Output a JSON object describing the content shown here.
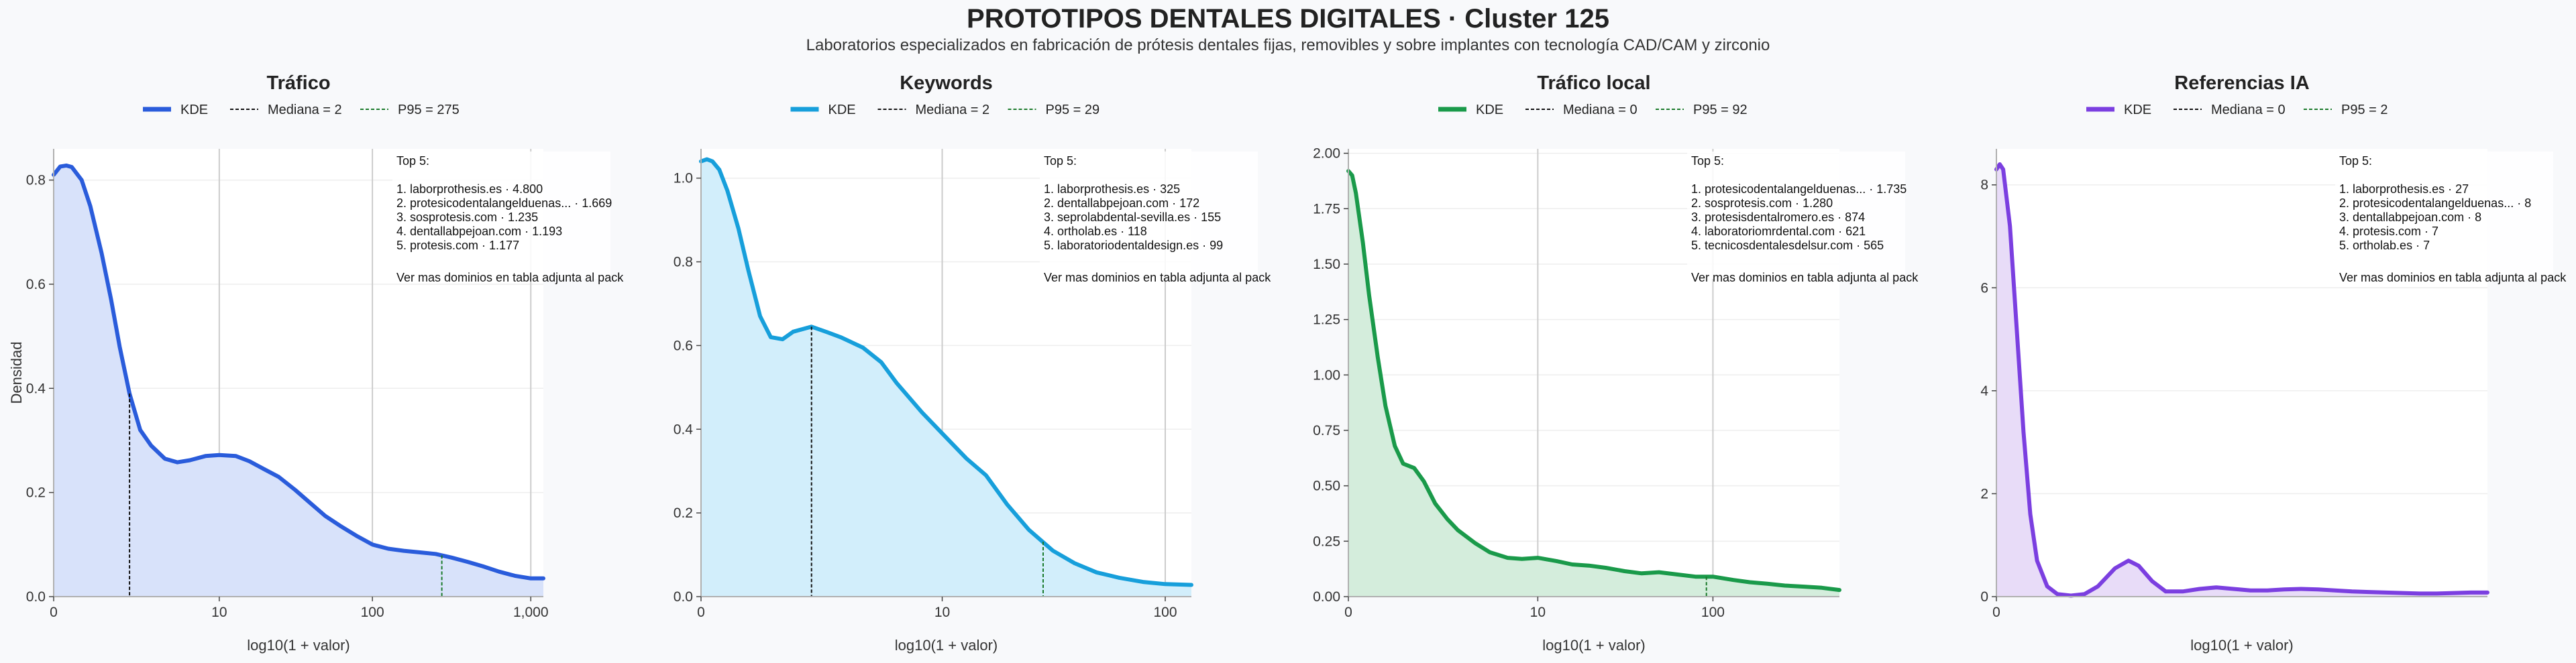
{
  "header": {
    "title": "PROTOTIPOS DENTALES DIGITALES · Cluster 125",
    "subtitle": "Laboratorios especializados en fabricación de prótesis dentales fijas, removibles y sobre implantes con tecnología CAD/CAM y zirconio"
  },
  "chart_data": [
    {
      "type": "area",
      "title": "Tráfico",
      "color": "#2a5cdb",
      "fill": "#d8e2fa",
      "xlabel": "log10(1 + valor)",
      "ylabel": "Densidad",
      "xscale": "log10(1+x)",
      "xlim": [
        0,
        1200
      ],
      "ylim": [
        0,
        0.86
      ],
      "xticks": [
        0,
        10,
        100,
        1000
      ],
      "xtick_labels": [
        "0",
        "10",
        "100",
        "1,000"
      ],
      "yticks": [
        0,
        0.2,
        0.4,
        0.6,
        0.8
      ],
      "ytick_labels": [
        "0.0",
        "0.2",
        "0.4",
        "0.6",
        "0.8"
      ],
      "legend": [
        "KDE",
        "Mediana = 2",
        "P95 = 275"
      ],
      "median": 2,
      "p95": 275,
      "series": [
        {
          "name": "KDE",
          "x": [
            0,
            0.1,
            0.2,
            0.3,
            0.5,
            0.7,
            1,
            1.3,
            1.6,
            2,
            2.5,
            3.1,
            4,
            5,
            6.2,
            8,
            10,
            13,
            16,
            20,
            25,
            32,
            40,
            50,
            63,
            79,
            100,
            126,
            158,
            200,
            251,
            316,
            398,
            501,
            631,
            794,
            1000,
            1200
          ],
          "y": [
            0.81,
            0.826,
            0.828,
            0.825,
            0.8,
            0.75,
            0.66,
            0.57,
            0.48,
            0.39,
            0.32,
            0.29,
            0.265,
            0.258,
            0.262,
            0.27,
            0.272,
            0.27,
            0.26,
            0.245,
            0.23,
            0.205,
            0.18,
            0.155,
            0.135,
            0.117,
            0.1,
            0.092,
            0.088,
            0.085,
            0.082,
            0.075,
            0.067,
            0.058,
            0.048,
            0.04,
            0.035,
            0.035
          ]
        }
      ],
      "annotation": {
        "heading": "Top 5:",
        "items": [
          "1. laborprothesis.es · 4.800",
          "2. protesicodentalangelduenas... · 1.669",
          "3. sosprotesis.com · 1.235",
          "4. dentallabpejoan.com · 1.193",
          "5. protesis.com · 1.177"
        ],
        "footer": "Ver mas dominios en tabla adjunta al pack"
      }
    },
    {
      "type": "area",
      "title": "Keywords",
      "color": "#179fdb",
      "fill": "#d2eefb",
      "xlabel": "log10(1 + valor)",
      "ylabel": "",
      "xscale": "log10(1+x)",
      "xlim": [
        0,
        130
      ],
      "ylim": [
        0,
        1.07
      ],
      "xticks": [
        0,
        10,
        100
      ],
      "xtick_labels": [
        "0",
        "10",
        "100"
      ],
      "yticks": [
        0,
        0.2,
        0.4,
        0.6,
        0.8,
        1.0
      ],
      "ytick_labels": [
        "0.0",
        "0.2",
        "0.4",
        "0.6",
        "0.8",
        "1.0"
      ],
      "legend": [
        "KDE",
        "Mediana = 2",
        "P95 = 29"
      ],
      "median": 2,
      "p95": 29,
      "series": [
        {
          "name": "KDE",
          "x": [
            0,
            0.06,
            0.12,
            0.2,
            0.3,
            0.45,
            0.6,
            0.8,
            1,
            1.25,
            1.5,
            2,
            2.5,
            3,
            4,
            5,
            6,
            8,
            10,
            13,
            16,
            20,
            25,
            32,
            40,
            50,
            63,
            80,
            100,
            130
          ],
          "y": [
            1.04,
            1.045,
            1.04,
            1.02,
            0.97,
            0.88,
            0.78,
            0.67,
            0.62,
            0.615,
            0.633,
            0.645,
            0.632,
            0.62,
            0.595,
            0.56,
            0.51,
            0.44,
            0.39,
            0.33,
            0.29,
            0.22,
            0.16,
            0.11,
            0.08,
            0.058,
            0.045,
            0.035,
            0.03,
            0.028
          ]
        }
      ],
      "annotation": {
        "heading": "Top 5:",
        "items": [
          "1. laborprothesis.es · 325",
          "2. dentallabpejoan.com · 172",
          "3. seprolabdental-sevilla.es · 155",
          "4. ortholab.es · 118",
          "5. laboratoriodentaldesign.es · 99"
        ],
        "footer": "Ver mas dominios en tabla adjunta al pack"
      }
    },
    {
      "type": "area",
      "title": "Tráfico local",
      "color": "#1a9a4a",
      "fill": "#d4eddc",
      "xlabel": "log10(1 + valor)",
      "ylabel": "",
      "xscale": "log10(1+x)",
      "xlim": [
        0,
        500
      ],
      "ylim": [
        0,
        2.02
      ],
      "xticks": [
        0,
        10,
        100
      ],
      "xtick_labels": [
        "0",
        "10",
        "100"
      ],
      "yticks": [
        0,
        0.25,
        0.5,
        0.75,
        1.0,
        1.25,
        1.5,
        1.75,
        2.0
      ],
      "ytick_labels": [
        "0.00",
        "0.25",
        "0.50",
        "0.75",
        "1.00",
        "1.25",
        "1.50",
        "1.75",
        "2.00"
      ],
      "legend": [
        "KDE",
        "Mediana = 0",
        "P95 = 92"
      ],
      "median": 0,
      "p95": 92,
      "series": [
        {
          "name": "KDE",
          "x": [
            0,
            0.05,
            0.1,
            0.2,
            0.3,
            0.45,
            0.6,
            0.8,
            1,
            1.3,
            1.6,
            2,
            2.5,
            3,
            4,
            5,
            6.5,
            8,
            10,
            13,
            16,
            20,
            25,
            32,
            40,
            50,
            63,
            80,
            100,
            130,
            160,
            200,
            250,
            320,
            400,
            500
          ],
          "y": [
            1.92,
            1.9,
            1.82,
            1.6,
            1.36,
            1.08,
            0.86,
            0.68,
            0.6,
            0.58,
            0.52,
            0.42,
            0.35,
            0.3,
            0.24,
            0.2,
            0.175,
            0.17,
            0.175,
            0.16,
            0.145,
            0.14,
            0.13,
            0.115,
            0.105,
            0.11,
            0.1,
            0.09,
            0.09,
            0.075,
            0.065,
            0.058,
            0.05,
            0.045,
            0.04,
            0.03
          ]
        }
      ],
      "annotation": {
        "heading": "Top 5:",
        "items": [
          "1. protesicodentalangelduenas... · 1.735",
          "2. sosprotesis.com · 1.280",
          "3. protesisdentalromero.es · 874",
          "4. laboratoriomrdental.com · 621",
          "5. tecnicosdentalesdelsur.com · 565"
        ],
        "footer": "Ver mas dominios en tabla adjunta al pack"
      }
    },
    {
      "type": "area",
      "title": "Referencias IA",
      "color": "#7b3fe0",
      "fill": "#e8dcf8",
      "xlabel": "log10(1 + valor)",
      "ylabel": "",
      "xscale": "linear-in-log",
      "xlim": [
        0,
        1.45
      ],
      "ylim": [
        0,
        8.7
      ],
      "xticks": [
        0
      ],
      "xtick_labels": [
        "0"
      ],
      "yticks": [
        0,
        2,
        4,
        6,
        8
      ],
      "ytick_labels": [
        "0",
        "2",
        "4",
        "6",
        "8"
      ],
      "legend": [
        "KDE",
        "Mediana = 0",
        "P95 = 2"
      ],
      "median": 0,
      "p95": 2,
      "series": [
        {
          "name": "KDE",
          "x": [
            0,
            0.01,
            0.02,
            0.04,
            0.06,
            0.08,
            0.1,
            0.12,
            0.15,
            0.18,
            0.22,
            0.26,
            0.3,
            0.35,
            0.39,
            0.42,
            0.46,
            0.5,
            0.55,
            0.6,
            0.65,
            0.7,
            0.75,
            0.8,
            0.85,
            0.9,
            0.95,
            1.0,
            1.05,
            1.1,
            1.15,
            1.2,
            1.25,
            1.3,
            1.35,
            1.4,
            1.45
          ],
          "y": [
            8.3,
            8.4,
            8.3,
            7.2,
            5.2,
            3.2,
            1.6,
            0.7,
            0.2,
            0.05,
            0.02,
            0.05,
            0.2,
            0.55,
            0.7,
            0.6,
            0.3,
            0.1,
            0.1,
            0.15,
            0.18,
            0.15,
            0.12,
            0.12,
            0.14,
            0.15,
            0.14,
            0.12,
            0.1,
            0.09,
            0.08,
            0.07,
            0.06,
            0.06,
            0.07,
            0.08,
            0.08
          ]
        }
      ],
      "annotation": {
        "heading": "Top 5:",
        "items": [
          "1. laborprothesis.es · 27",
          "2. protesicodentalangelduenas... · 8",
          "3. dentallabpejoan.com · 8",
          "4. protesis.com · 7",
          "5. ortholab.es · 7"
        ],
        "footer": "Ver mas dominios en tabla adjunta al pack"
      }
    }
  ]
}
